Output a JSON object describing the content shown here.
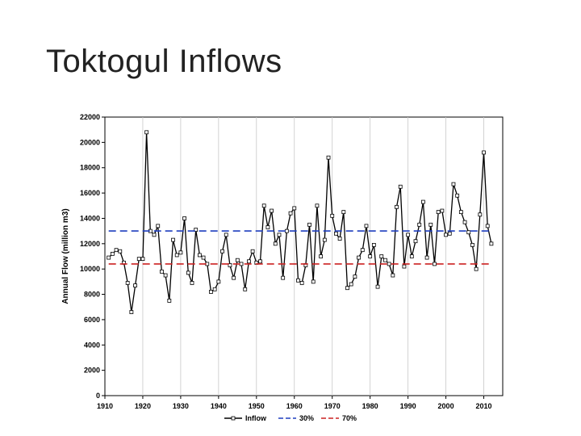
{
  "slide": {
    "title": "Toktogul Inflows"
  },
  "colors": {
    "inflow": "#000000",
    "p30": "#1f3fbf",
    "p70": "#cc2222",
    "grid": "#c8c8c8"
  },
  "chart_data": {
    "type": "line",
    "ylabel": "Annual Flow (million m3)",
    "xlim": [
      1910,
      2015
    ],
    "ylim": [
      0,
      22000
    ],
    "xticks": [
      1910,
      1920,
      1930,
      1940,
      1950,
      1960,
      1970,
      1980,
      1990,
      2000,
      2010
    ],
    "yticks": [
      0,
      2000,
      4000,
      6000,
      8000,
      10000,
      12000,
      14000,
      16000,
      18000,
      20000,
      22000
    ],
    "xtick_labels": [
      "1910",
      "1920",
      "1930",
      "1940",
      "1950",
      "1960",
      "1970",
      "1980",
      "1990",
      "2000",
      "2010"
    ],
    "ytick_labels": [
      "0",
      "2000",
      "4000",
      "6000",
      "8000",
      "10000",
      "12000",
      "14000",
      "16000",
      "18000",
      "20000",
      "22000"
    ],
    "grid": true,
    "legend_position": "bottom",
    "legend": [
      "Inflow",
      "30%",
      "70%"
    ],
    "series": [
      {
        "name": "Inflow",
        "style": "line-markers",
        "x": [
          1911,
          1912,
          1913,
          1914,
          1915,
          1916,
          1917,
          1918,
          1919,
          1920,
          1921,
          1922,
          1923,
          1924,
          1925,
          1926,
          1927,
          1928,
          1929,
          1930,
          1931,
          1932,
          1933,
          1934,
          1935,
          1936,
          1937,
          1938,
          1939,
          1940,
          1941,
          1942,
          1943,
          1944,
          1945,
          1946,
          1947,
          1948,
          1949,
          1950,
          1951,
          1952,
          1953,
          1954,
          1955,
          1956,
          1957,
          1958,
          1959,
          1960,
          1961,
          1962,
          1963,
          1964,
          1965,
          1966,
          1967,
          1968,
          1969,
          1970,
          1971,
          1972,
          1973,
          1974,
          1975,
          1976,
          1977,
          1978,
          1979,
          1980,
          1981,
          1982,
          1983,
          1984,
          1985,
          1986,
          1987,
          1988,
          1989,
          1990,
          1991,
          1992,
          1993,
          1994,
          1995,
          1996,
          1997,
          1998,
          1999,
          2000,
          2001,
          2002,
          2003,
          2004,
          2005,
          2006,
          2007,
          2008,
          2009,
          2010,
          2011,
          2012
        ],
        "y": [
          10900,
          11200,
          11500,
          11400,
          10500,
          8900,
          6600,
          8700,
          10800,
          10800,
          20800,
          13000,
          12700,
          13400,
          9800,
          9500,
          7500,
          12300,
          11100,
          11300,
          14000,
          9700,
          8900,
          13100,
          11100,
          10900,
          10400,
          8200,
          8400,
          9000,
          11400,
          12700,
          10300,
          9300,
          10700,
          10400,
          8400,
          10600,
          11400,
          10500,
          10600,
          15000,
          13300,
          14600,
          12000,
          12700,
          9300,
          13000,
          14400,
          14800,
          9100,
          8900,
          10300,
          13500,
          9000,
          15000,
          11000,
          12300,
          18800,
          14200,
          12800,
          12400,
          14500,
          8500,
          8800,
          9400,
          10900,
          11500,
          13400,
          11000,
          11900,
          8600,
          11000,
          10700,
          10400,
          9500,
          14900,
          16500,
          10200,
          12700,
          11000,
          12200,
          13500,
          15300,
          10900,
          13500,
          10400,
          14500,
          14600,
          12700,
          12800,
          16700,
          15800,
          14500,
          13700,
          12900,
          11900,
          10000,
          14300,
          19200,
          13400,
          12000
        ]
      },
      {
        "name": "30%",
        "style": "dashed",
        "x": [
          1911,
          2012
        ],
        "y": [
          13000,
          13000
        ]
      },
      {
        "name": "70%",
        "style": "dashed",
        "x": [
          1911,
          2012
        ],
        "y": [
          10400,
          10400
        ]
      }
    ]
  }
}
